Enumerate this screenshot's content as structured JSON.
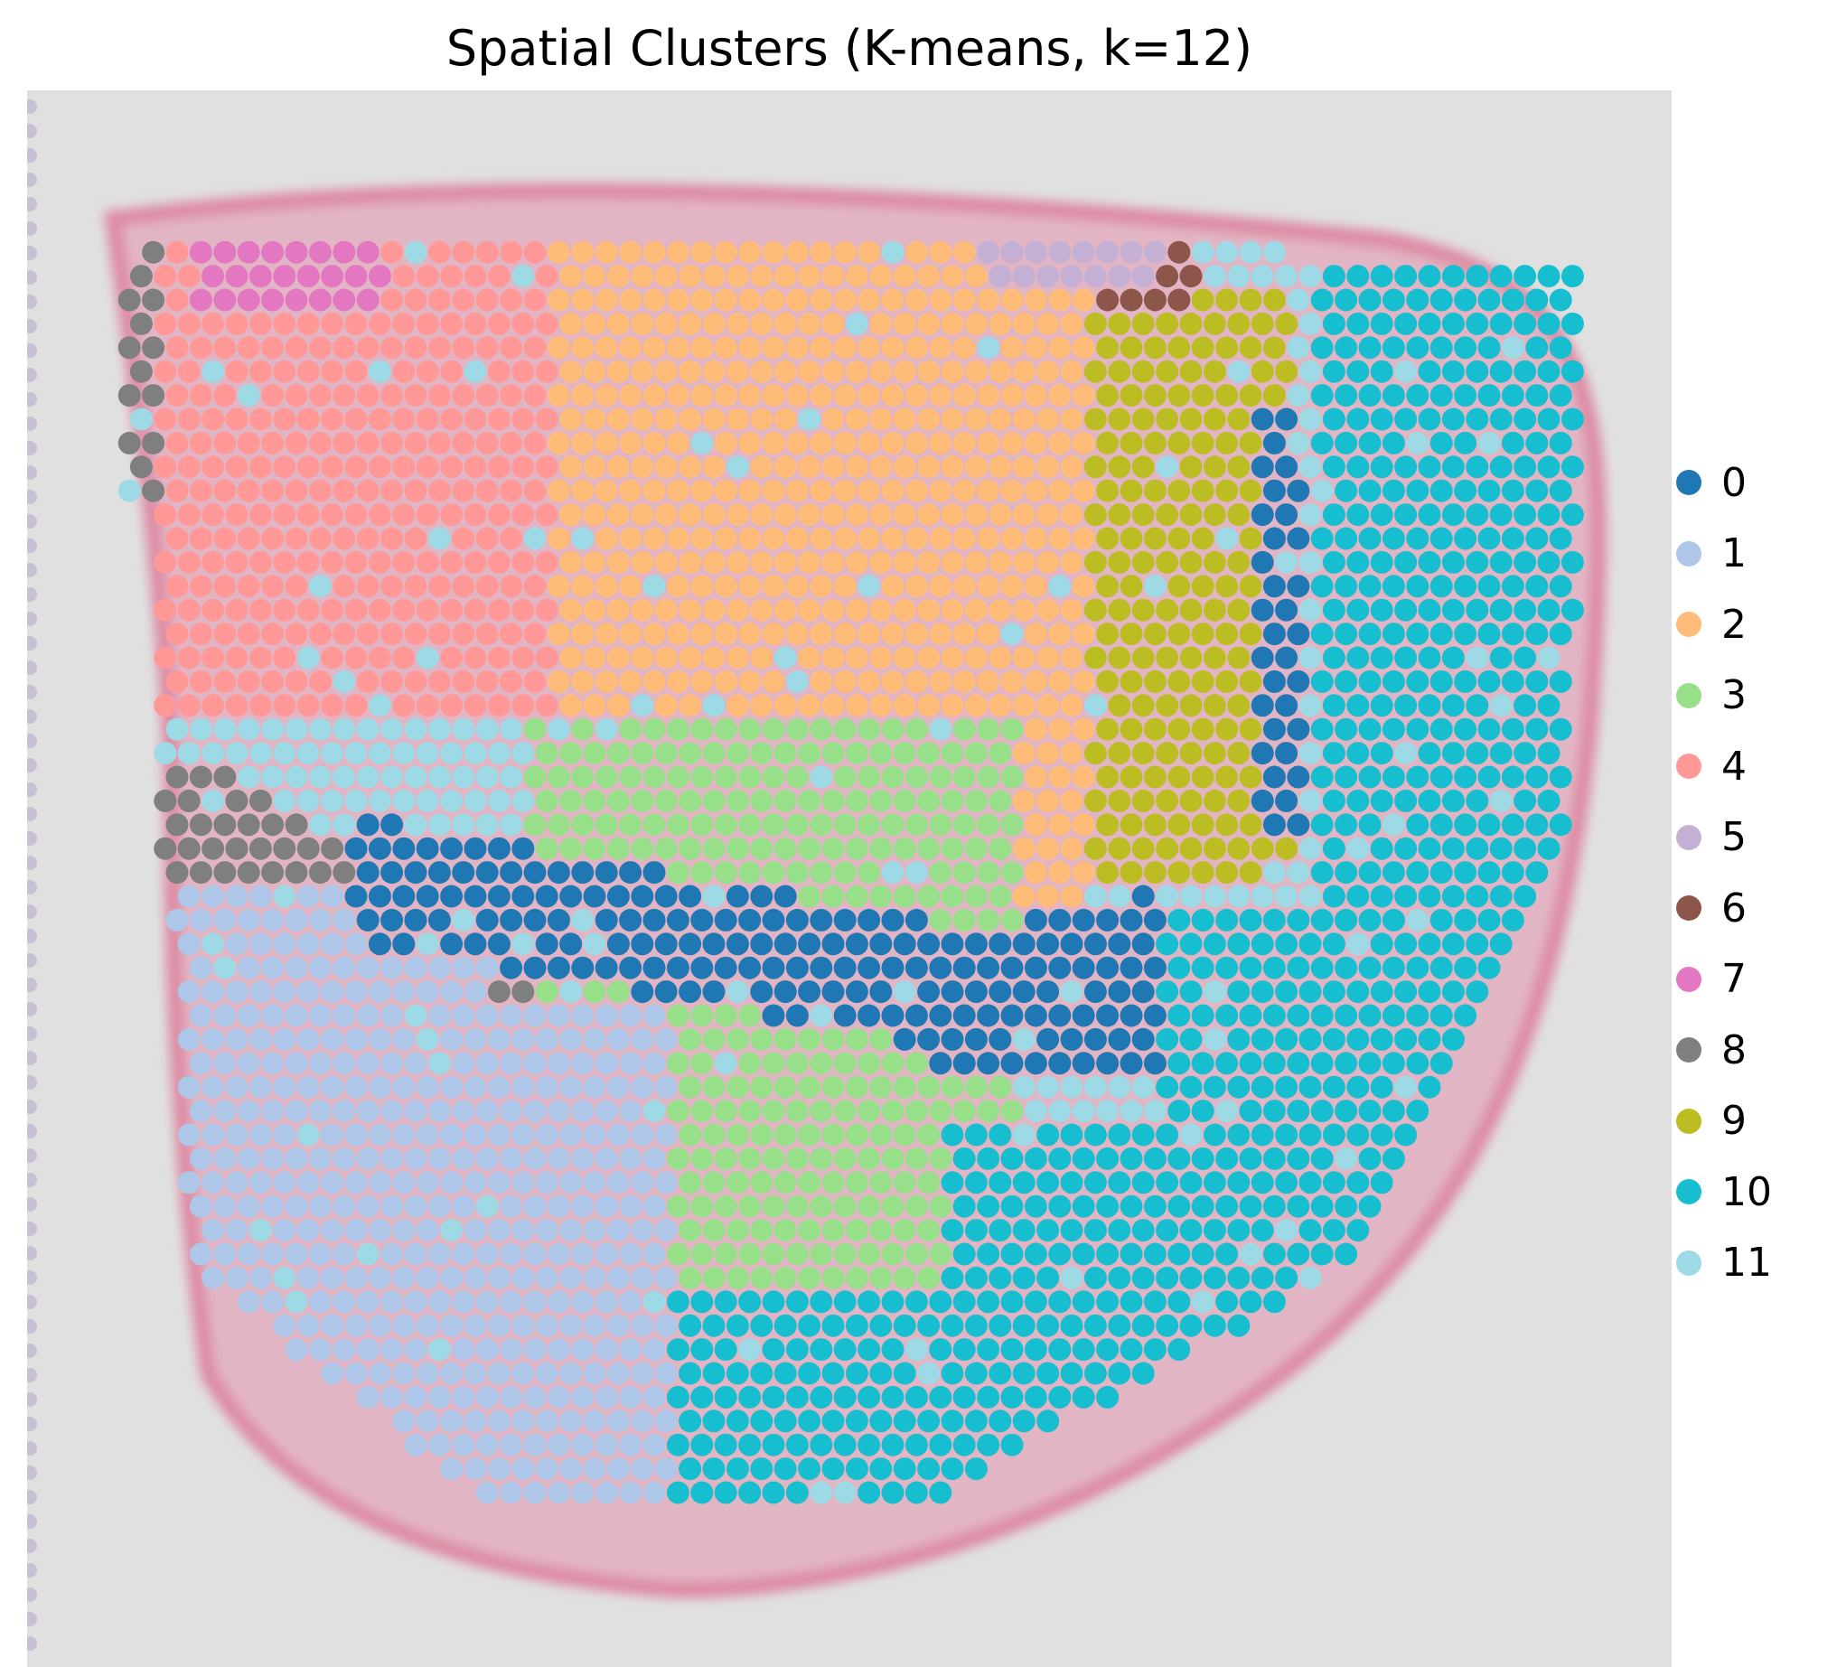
{
  "chart_data": {
    "type": "scatter",
    "title": "Spatial Clusters (K-means, k=12)",
    "xlabel": "",
    "ylabel": "",
    "axes": "off",
    "background": "H&E tissue image (mouse brain section)",
    "legend": {
      "position": "right",
      "entries": [
        "0",
        "1",
        "2",
        "3",
        "4",
        "5",
        "6",
        "7",
        "8",
        "9",
        "10",
        "11"
      ]
    },
    "colors": {
      "0": "#1f77b4",
      "1": "#aec7e8",
      "2": "#ffbb78",
      "3": "#98df8a",
      "4": "#ff9896",
      "5": "#c5b0d5",
      "6": "#8c564b",
      "7": "#e377c2",
      "8": "#7f7f7f",
      "9": "#bcbd22",
      "10": "#17becf",
      "11": "#9edae5"
    },
    "spot_grid": {
      "rows": 56,
      "cols": 64
    }
  }
}
